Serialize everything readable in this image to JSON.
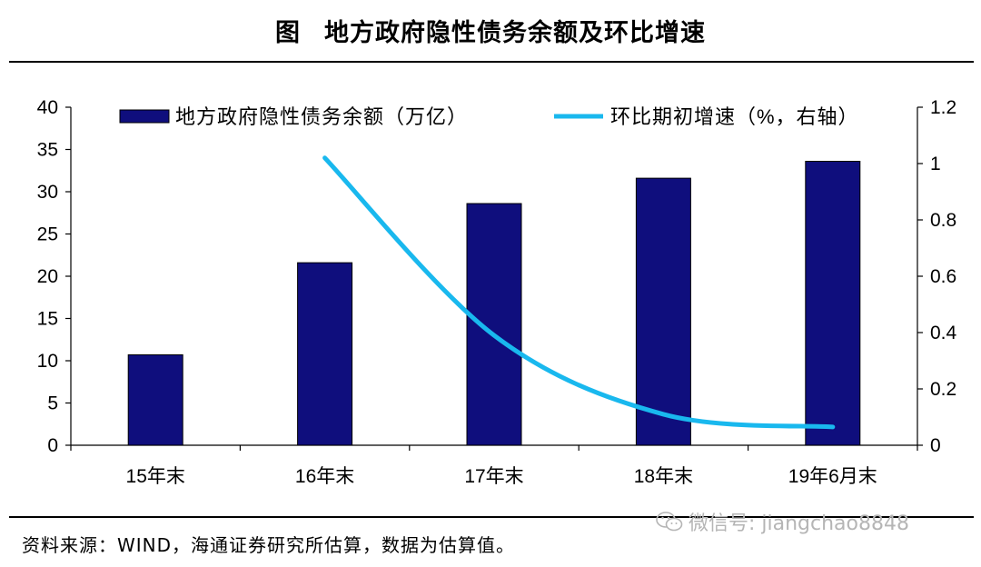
{
  "header": {
    "figure_label": "图",
    "title": "地方政府隐性债务余额及环比增速"
  },
  "chart_data": {
    "type": "bar+line",
    "categories": [
      "15年末",
      "16年末",
      "17年末",
      "18年末",
      "19年6月末"
    ],
    "series": [
      {
        "name": "地方政府隐性债务余额（万亿）",
        "type": "bar",
        "axis": "left",
        "values": [
          10.7,
          21.6,
          28.6,
          31.6,
          33.6
        ],
        "color": "#0f0e7d"
      },
      {
        "name": "环比期初增速（%，右轴）",
        "type": "line",
        "axis": "right",
        "values": [
          null,
          1.02,
          0.39,
          0.11,
          0.065
        ],
        "color": "#19b8ee"
      }
    ],
    "left_axis": {
      "ylim": [
        0,
        40
      ],
      "ticks": [
        "0",
        "5",
        "10",
        "15",
        "20",
        "25",
        "30",
        "35",
        "40"
      ]
    },
    "right_axis": {
      "ylim": [
        0,
        1.2
      ],
      "ticks": [
        "0",
        "0.2",
        "0.4",
        "0.6",
        "0.8",
        "1",
        "1.2"
      ]
    },
    "legend_position": "top"
  },
  "footer": {
    "source": "资料来源：WIND，海通证券研究所估算，数据为估算值。",
    "watermark": "微信号: jiangchao8848",
    "watermark_icon": "wechat-icon"
  }
}
